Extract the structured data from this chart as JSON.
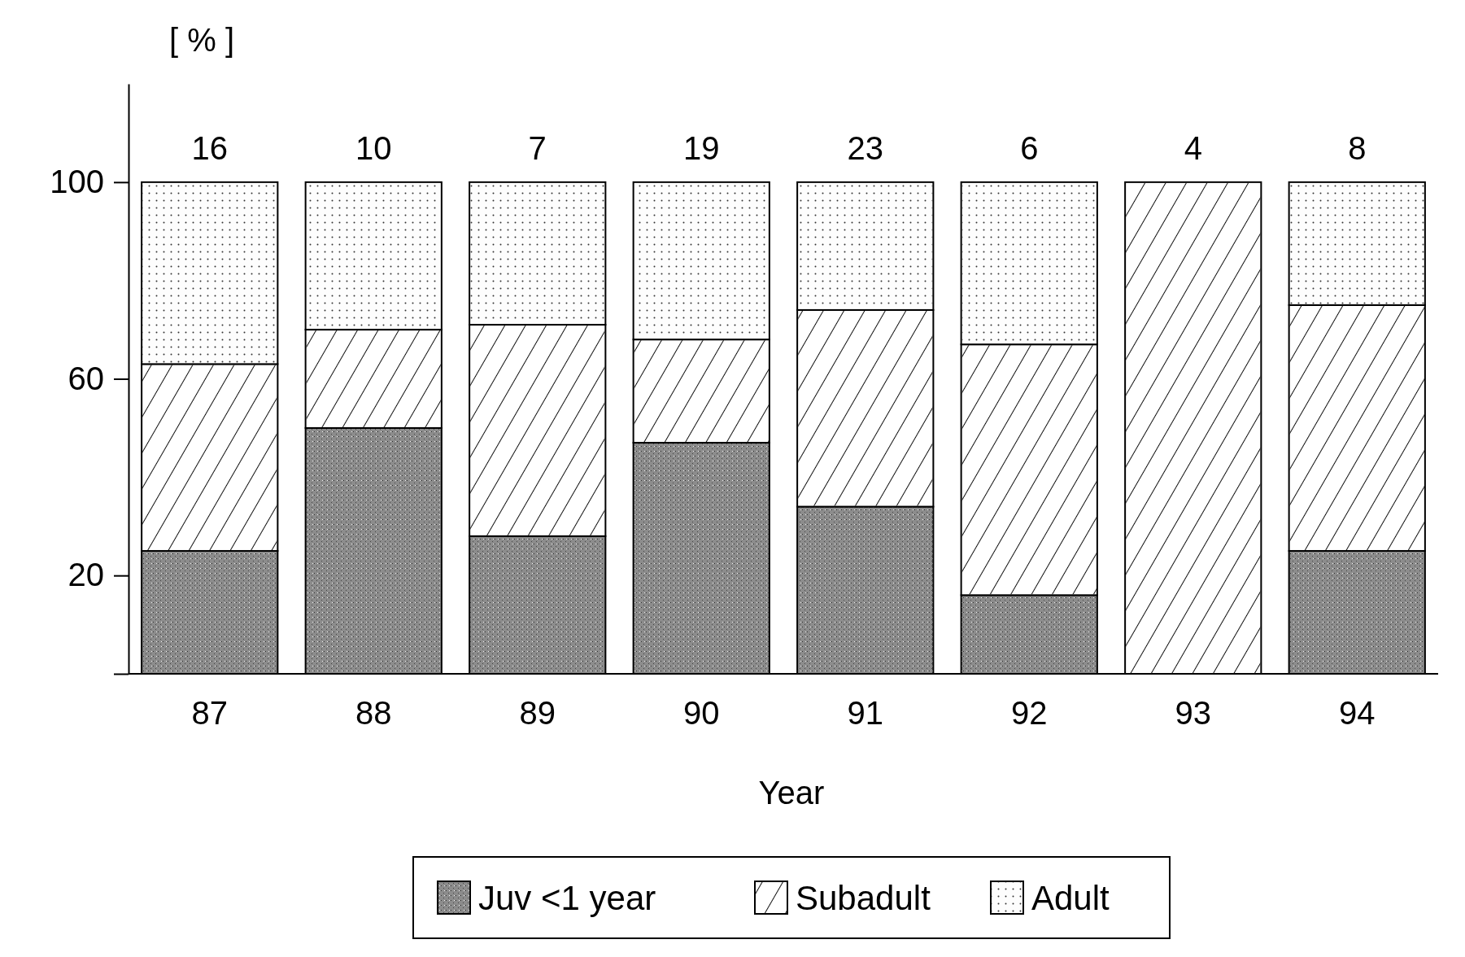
{
  "chart_data": {
    "type": "bar",
    "stacked": true,
    "xlabel": "Year",
    "ylabel": "[ % ]",
    "categories": [
      "87",
      "88",
      "89",
      "90",
      "91",
      "92",
      "93",
      "94"
    ],
    "series": [
      {
        "name": "Juv <1 year",
        "color": "#8c8c8c",
        "values": [
          25,
          50,
          28,
          47,
          34,
          16,
          0,
          25
        ]
      },
      {
        "name": "Subadult",
        "color": "#ffffff",
        "values": [
          38,
          20,
          43,
          21,
          40,
          51,
          100,
          50
        ]
      },
      {
        "name": "Adult",
        "color": "#fdfdfd",
        "values": [
          37,
          30,
          29,
          32,
          26,
          33,
          0,
          25
        ]
      }
    ],
    "annotations": [
      {
        "text": "16",
        "x": "87",
        "y": 100
      },
      {
        "text": "10",
        "x": "88",
        "y": 100
      },
      {
        "text": "7",
        "x": "89",
        "y": 100
      },
      {
        "text": "19",
        "x": "90",
        "y": 100
      },
      {
        "text": "23",
        "x": "91",
        "y": 100
      },
      {
        "text": "6",
        "x": "92",
        "y": 100
      },
      {
        "text": "4",
        "x": "93",
        "y": 100
      },
      {
        "text": "8",
        "x": "94",
        "y": 100
      }
    ],
    "ylim": [
      0,
      120
    ],
    "yticks": [
      {
        "value": 0,
        "label": null
      },
      20,
      60,
      100
    ],
    "grid": false,
    "legend": "bottom"
  }
}
